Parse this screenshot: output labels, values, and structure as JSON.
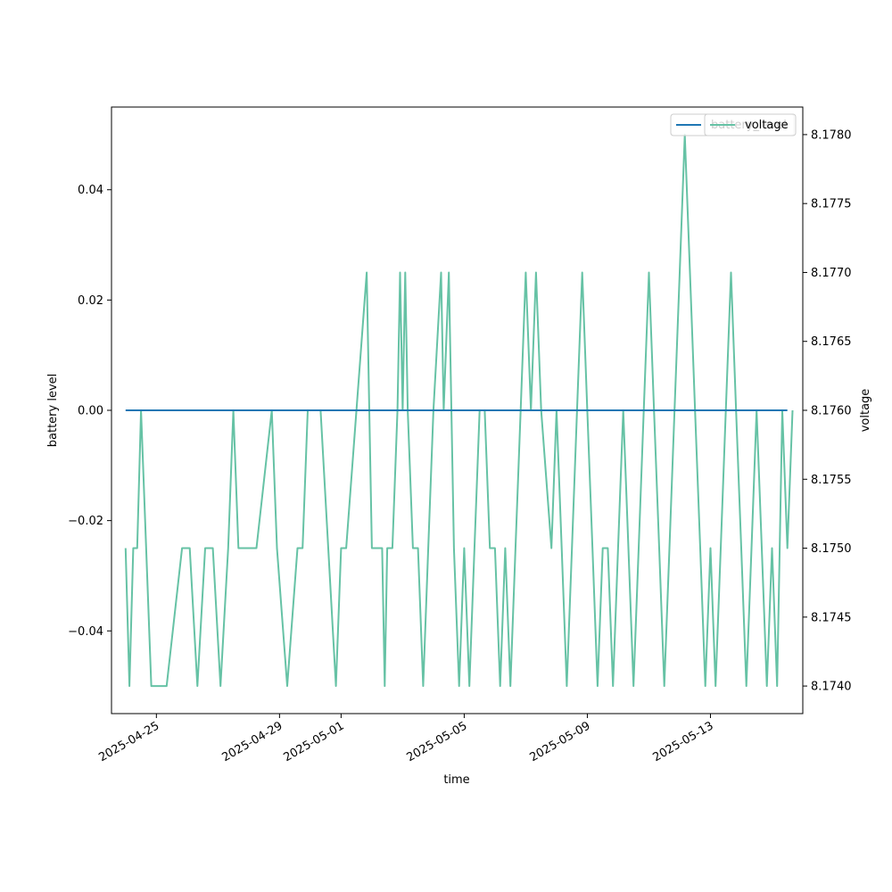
{
  "chart_data": {
    "type": "line",
    "xlabel": "time",
    "ylabel": "battery level",
    "ylabel_right": "voltage",
    "x_range": [
      "2025-04-23T13:00",
      "2025-05-16T00:00"
    ],
    "ylim": [
      -0.055,
      0.055
    ],
    "ylim_right": [
      8.1738,
      8.1782
    ],
    "x_ticks": [
      "2025-04-25",
      "2025-04-29",
      "2025-05-01",
      "2025-05-05",
      "2025-05-09",
      "2025-05-13"
    ],
    "y_ticks": [
      "0.04",
      "0.02",
      "0.00",
      "−0.02",
      "−0.04"
    ],
    "y_tick_values": [
      0.04,
      0.02,
      0.0,
      -0.02,
      -0.04
    ],
    "y2_ticks": [
      "8.1780",
      "8.1775",
      "8.1770",
      "8.1765",
      "8.1760",
      "8.1755",
      "8.1750",
      "8.1745",
      "8.1740"
    ],
    "y2_tick_values": [
      8.178,
      8.1775,
      8.177,
      8.1765,
      8.176,
      8.1755,
      8.175,
      8.1745,
      8.174
    ],
    "legend_left": {
      "placement": "upper right",
      "label": "battery_level"
    },
    "legend_right": {
      "placement": "upper right",
      "label": "voltage"
    },
    "series": [
      {
        "name": "battery_level",
        "axis": "left",
        "color": "#1f77b4",
        "x": [
          "2025-04-24T00:00",
          "2025-05-15T12:00"
        ],
        "y": [
          0.0,
          0.0
        ]
      },
      {
        "name": "voltage",
        "axis": "right",
        "color": "#66c2a5",
        "points": [
          [
            "2025-04-24T00:00",
            8.175
          ],
          [
            "2025-04-24T03:00",
            8.174
          ],
          [
            "2025-04-24T06:00",
            8.175
          ],
          [
            "2025-04-24T09:00",
            8.175
          ],
          [
            "2025-04-24T12:00",
            8.176
          ],
          [
            "2025-04-24T20:00",
            8.174
          ],
          [
            "2025-04-25T08:00",
            8.174
          ],
          [
            "2025-04-25T20:00",
            8.175
          ],
          [
            "2025-04-26T02:00",
            8.175
          ],
          [
            "2025-04-26T08:00",
            8.174
          ],
          [
            "2025-04-26T14:00",
            8.175
          ],
          [
            "2025-04-26T20:00",
            8.175
          ],
          [
            "2025-04-27T02:00",
            8.174
          ],
          [
            "2025-04-27T08:00",
            8.175
          ],
          [
            "2025-04-27T12:00",
            8.176
          ],
          [
            "2025-04-27T16:00",
            8.175
          ],
          [
            "2025-04-28T06:00",
            8.175
          ],
          [
            "2025-04-28T18:00",
            8.176
          ],
          [
            "2025-04-28T22:00",
            8.175
          ],
          [
            "2025-04-29T06:00",
            8.174
          ],
          [
            "2025-04-29T14:00",
            8.175
          ],
          [
            "2025-04-29T18:00",
            8.175
          ],
          [
            "2025-04-29T22:00",
            8.176
          ],
          [
            "2025-04-30T08:00",
            8.176
          ],
          [
            "2025-04-30T20:00",
            8.174
          ],
          [
            "2025-05-01T00:00",
            8.175
          ],
          [
            "2025-05-01T04:00",
            8.175
          ],
          [
            "2025-05-01T12:00",
            8.176
          ],
          [
            "2025-05-01T20:00",
            8.177
          ],
          [
            "2025-05-02T00:00",
            8.175
          ],
          [
            "2025-05-02T08:00",
            8.175
          ],
          [
            "2025-05-02T10:00",
            8.174
          ],
          [
            "2025-05-02T12:00",
            8.175
          ],
          [
            "2025-05-02T16:00",
            8.175
          ],
          [
            "2025-05-02T20:00",
            8.176
          ],
          [
            "2025-05-02T22:00",
            8.177
          ],
          [
            "2025-05-03T00:00",
            8.176
          ],
          [
            "2025-05-03T02:00",
            8.177
          ],
          [
            "2025-05-03T04:00",
            8.176
          ],
          [
            "2025-05-03T08:00",
            8.175
          ],
          [
            "2025-05-03T12:00",
            8.175
          ],
          [
            "2025-05-03T16:00",
            8.174
          ],
          [
            "2025-05-03T20:00",
            8.175
          ],
          [
            "2025-05-04T00:00",
            8.176
          ],
          [
            "2025-05-04T06:00",
            8.177
          ],
          [
            "2025-05-04T08:00",
            8.176
          ],
          [
            "2025-05-04T12:00",
            8.177
          ],
          [
            "2025-05-04T16:00",
            8.175
          ],
          [
            "2025-05-04T20:00",
            8.174
          ],
          [
            "2025-05-05T00:00",
            8.175
          ],
          [
            "2025-05-05T04:00",
            8.174
          ],
          [
            "2025-05-05T08:00",
            8.175
          ],
          [
            "2025-05-05T12:00",
            8.176
          ],
          [
            "2025-05-05T16:00",
            8.176
          ],
          [
            "2025-05-05T20:00",
            8.175
          ],
          [
            "2025-05-06T00:00",
            8.175
          ],
          [
            "2025-05-06T04:00",
            8.174
          ],
          [
            "2025-05-06T08:00",
            8.175
          ],
          [
            "2025-05-06T12:00",
            8.174
          ],
          [
            "2025-05-06T16:00",
            8.175
          ],
          [
            "2025-05-06T20:00",
            8.176
          ],
          [
            "2025-05-07T00:00",
            8.177
          ],
          [
            "2025-05-07T04:00",
            8.176
          ],
          [
            "2025-05-07T08:00",
            8.177
          ],
          [
            "2025-05-07T12:00",
            8.176
          ],
          [
            "2025-05-07T20:00",
            8.175
          ],
          [
            "2025-05-08T00:00",
            8.176
          ],
          [
            "2025-05-08T04:00",
            8.175
          ],
          [
            "2025-05-08T08:00",
            8.174
          ],
          [
            "2025-05-08T12:00",
            8.175
          ],
          [
            "2025-05-08T16:00",
            8.176
          ],
          [
            "2025-05-08T20:00",
            8.177
          ],
          [
            "2025-05-09T00:00",
            8.176
          ],
          [
            "2025-05-09T04:00",
            8.175
          ],
          [
            "2025-05-09T08:00",
            8.174
          ],
          [
            "2025-05-09T12:00",
            8.175
          ],
          [
            "2025-05-09T16:00",
            8.175
          ],
          [
            "2025-05-09T20:00",
            8.174
          ],
          [
            "2025-05-10T00:00",
            8.175
          ],
          [
            "2025-05-10T04:00",
            8.176
          ],
          [
            "2025-05-10T08:00",
            8.175
          ],
          [
            "2025-05-10T12:00",
            8.174
          ],
          [
            "2025-05-10T16:00",
            8.175
          ],
          [
            "2025-05-10T20:00",
            8.176
          ],
          [
            "2025-05-11T00:00",
            8.177
          ],
          [
            "2025-05-11T04:00",
            8.176
          ],
          [
            "2025-05-11T08:00",
            8.175
          ],
          [
            "2025-05-11T12:00",
            8.174
          ],
          [
            "2025-05-11T16:00",
            8.175
          ],
          [
            "2025-05-11T20:00",
            8.176
          ],
          [
            "2025-05-12T00:00",
            8.177
          ],
          [
            "2025-05-12T04:00",
            8.178
          ],
          [
            "2025-05-12T08:00",
            8.177
          ],
          [
            "2025-05-12T12:00",
            8.176
          ],
          [
            "2025-05-12T16:00",
            8.175
          ],
          [
            "2025-05-12T20:00",
            8.174
          ],
          [
            "2025-05-13T00:00",
            8.175
          ],
          [
            "2025-05-13T04:00",
            8.174
          ],
          [
            "2025-05-13T08:00",
            8.175
          ],
          [
            "2025-05-13T12:00",
            8.176
          ],
          [
            "2025-05-13T16:00",
            8.177
          ],
          [
            "2025-05-13T20:00",
            8.176
          ],
          [
            "2025-05-14T00:00",
            8.175
          ],
          [
            "2025-05-14T04:00",
            8.174
          ],
          [
            "2025-05-14T08:00",
            8.175
          ],
          [
            "2025-05-14T12:00",
            8.176
          ],
          [
            "2025-05-14T16:00",
            8.175
          ],
          [
            "2025-05-14T20:00",
            8.174
          ],
          [
            "2025-05-15T00:00",
            8.175
          ],
          [
            "2025-05-15T04:00",
            8.174
          ],
          [
            "2025-05-15T08:00",
            8.176
          ],
          [
            "2025-05-15T12:00",
            8.175
          ],
          [
            "2025-05-15T16:00",
            8.176
          ]
        ]
      }
    ]
  }
}
